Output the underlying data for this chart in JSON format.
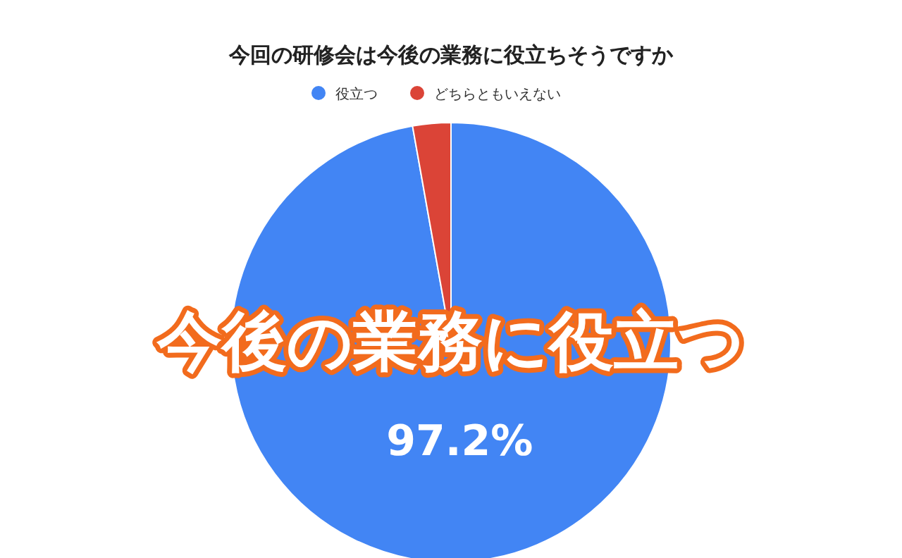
{
  "chart_data": {
    "type": "pie",
    "title": "今回の研修会は今後の業務に役立ちそうですか",
    "categories": [
      "役立つ",
      "どちらともいえない"
    ],
    "values": [
      97.2,
      2.8
    ],
    "colors": [
      "#4285f4",
      "#db4437"
    ],
    "value_labels": [
      "97.2%",
      null
    ],
    "legend": "top",
    "annotations": [
      "今後の業務に役立つ"
    ]
  }
}
